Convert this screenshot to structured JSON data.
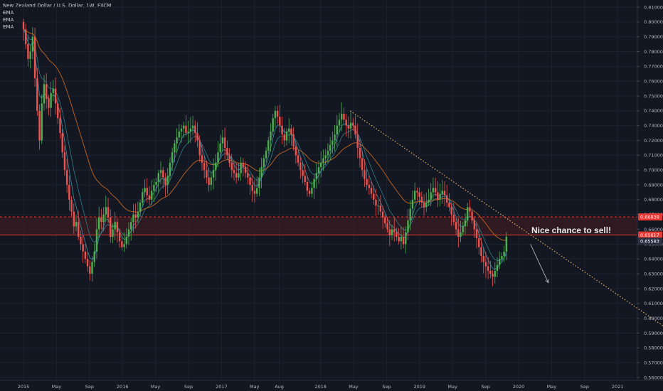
{
  "header": {
    "title": "New Zealand Dollar / U.S. Dollar, 1W, FXCM",
    "indicators": [
      "EMA",
      "EMA",
      "EMA"
    ]
  },
  "annotation": {
    "text": "Nice chance to sell!"
  },
  "colors": {
    "background": "#131722",
    "up": "#4caf50",
    "down": "#ef5350",
    "ema_fast": "#2f7d8c",
    "ema_slow": "#c4661f",
    "zone": "#3a1c22",
    "level_line": "#e53935",
    "trendline": "#e0b36a",
    "grid": "#1e2230"
  },
  "chart_data": {
    "type": "candlestick",
    "symbol": "New Zealand Dollar / U.S. Dollar",
    "interval": "1W",
    "source": "FXCM",
    "ylim": [
      0.56,
      0.81
    ],
    "y_ticks": [
      "0.81000",
      "0.80000",
      "0.79000",
      "0.78000",
      "0.77000",
      "0.76000",
      "0.75000",
      "0.74000",
      "0.73000",
      "0.72000",
      "0.71000",
      "0.70000",
      "0.69000",
      "0.68000",
      "0.67000",
      "0.66000",
      "0.65000",
      "0.64000",
      "0.63000",
      "0.62000",
      "0.61000",
      "0.60000",
      "0.59000",
      "0.58000",
      "0.57000",
      "0.56000"
    ],
    "x_ticks": [
      "2015",
      "May",
      "Sep",
      "2016",
      "May",
      "Sep",
      "2017",
      "May",
      "Aug",
      "2018",
      "May",
      "Sep",
      "2019",
      "May",
      "Sep",
      "2020",
      "May",
      "Sep",
      "2021"
    ],
    "price_tags": [
      {
        "value": 0.66838,
        "label": "0.66838",
        "style": "dashed"
      },
      {
        "value": 0.65617,
        "label": "0.65617",
        "style": "solid"
      },
      {
        "value": 0.65583,
        "label": "0.65583",
        "style": "current"
      }
    ],
    "zone": {
      "from": 0.65617,
      "to": 0.66838
    },
    "trendline": {
      "from": {
        "t": 3.3,
        "v": 0.74
      },
      "to": {
        "t": 6.52,
        "v": 0.592
      }
    },
    "arrow": {
      "from": {
        "t": 5.12,
        "v": 0.65
      },
      "to": {
        "t": 5.3,
        "v": 0.624
      }
    },
    "closes": [
      0.795,
      0.785,
      0.775,
      0.78,
      0.79,
      0.762,
      0.74,
      0.72,
      0.745,
      0.758,
      0.748,
      0.742,
      0.752,
      0.755,
      0.745,
      0.735,
      0.725,
      0.712,
      0.7,
      0.69,
      0.68,
      0.672,
      0.662,
      0.665,
      0.655,
      0.65,
      0.645,
      0.64,
      0.635,
      0.63,
      0.638,
      0.645,
      0.66,
      0.668,
      0.665,
      0.67,
      0.675,
      0.668,
      0.655,
      0.66,
      0.665,
      0.658,
      0.652,
      0.648,
      0.65,
      0.655,
      0.66,
      0.665,
      0.67,
      0.668,
      0.672,
      0.678,
      0.685,
      0.688,
      0.683,
      0.68,
      0.686,
      0.69,
      0.692,
      0.698,
      0.7,
      0.695,
      0.69,
      0.696,
      0.705,
      0.712,
      0.718,
      0.722,
      0.726,
      0.728,
      0.73,
      0.725,
      0.726,
      0.728,
      0.73,
      0.725,
      0.72,
      0.71,
      0.705,
      0.7,
      0.695,
      0.69,
      0.695,
      0.7,
      0.705,
      0.712,
      0.718,
      0.722,
      0.715,
      0.71,
      0.705,
      0.7,
      0.698,
      0.695,
      0.698,
      0.705,
      0.702,
      0.698,
      0.695,
      0.69,
      0.686,
      0.684,
      0.688,
      0.695,
      0.702,
      0.708,
      0.713,
      0.72,
      0.726,
      0.735,
      0.74,
      0.736,
      0.73,
      0.724,
      0.72,
      0.726,
      0.728,
      0.724,
      0.716,
      0.71,
      0.705,
      0.7,
      0.696,
      0.692,
      0.686,
      0.684,
      0.688,
      0.694,
      0.698,
      0.702,
      0.705,
      0.708,
      0.71,
      0.713,
      0.717,
      0.72,
      0.724,
      0.73,
      0.734,
      0.738,
      0.734,
      0.73,
      0.728,
      0.732,
      0.73,
      0.724,
      0.715,
      0.708,
      0.7,
      0.694,
      0.69,
      0.688,
      0.684,
      0.68,
      0.676,
      0.676,
      0.672,
      0.668,
      0.664,
      0.66,
      0.656,
      0.66,
      0.658,
      0.655,
      0.652,
      0.655,
      0.65,
      0.658,
      0.666,
      0.674,
      0.68,
      0.686,
      0.685,
      0.682,
      0.678,
      0.675,
      0.678,
      0.68,
      0.685,
      0.688,
      0.685,
      0.68,
      0.684,
      0.686,
      0.683,
      0.678,
      0.675,
      0.67,
      0.665,
      0.66,
      0.655,
      0.658,
      0.662,
      0.666,
      0.675,
      0.672,
      0.666,
      0.66,
      0.654,
      0.648,
      0.642,
      0.638,
      0.635,
      0.632,
      0.63,
      0.628,
      0.632,
      0.636,
      0.64,
      0.642,
      0.645,
      0.655
    ],
    "ema_fast_type": "line",
    "ema_slow_type": "line"
  }
}
